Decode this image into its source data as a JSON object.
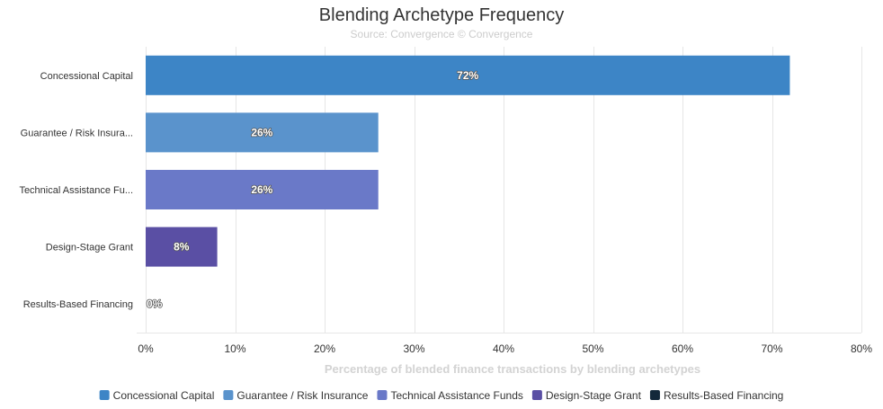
{
  "chart_data": {
    "type": "bar",
    "orientation": "horizontal",
    "title": "Blending Archetype Frequency",
    "subtitle": "Source: Convergence © Convergence",
    "xlabel": "Percentage of blended finance transactions by blending archetypes",
    "ylabel": "",
    "xlim": [
      0,
      80
    ],
    "tick_values": [
      0,
      10,
      20,
      30,
      40,
      50,
      60,
      70,
      80
    ],
    "tick_labels": [
      "0%",
      "10%",
      "20%",
      "30%",
      "40%",
      "50%",
      "60%",
      "70%",
      "80%"
    ],
    "grid": true,
    "legend_placement": "bottom",
    "categories": [
      "Concessional Capital",
      "Guarantee / Risk Insura...",
      "Technical Assistance Fu...",
      "Design-Stage Grant",
      "Results-Based Financing"
    ],
    "values": [
      72,
      26,
      26,
      8,
      0
    ],
    "data_labels": [
      "72%",
      "26%",
      "26%",
      "8%",
      "0%"
    ],
    "colors": [
      "#3d85c6",
      "#5a93cc",
      "#6a79c8",
      "#5a4fa4",
      "#13283a"
    ],
    "legend": [
      "Concessional Capital",
      "Guarantee / Risk Insurance",
      "Technical Assistance Funds",
      "Design-Stage Grant",
      "Results-Based Financing"
    ]
  }
}
